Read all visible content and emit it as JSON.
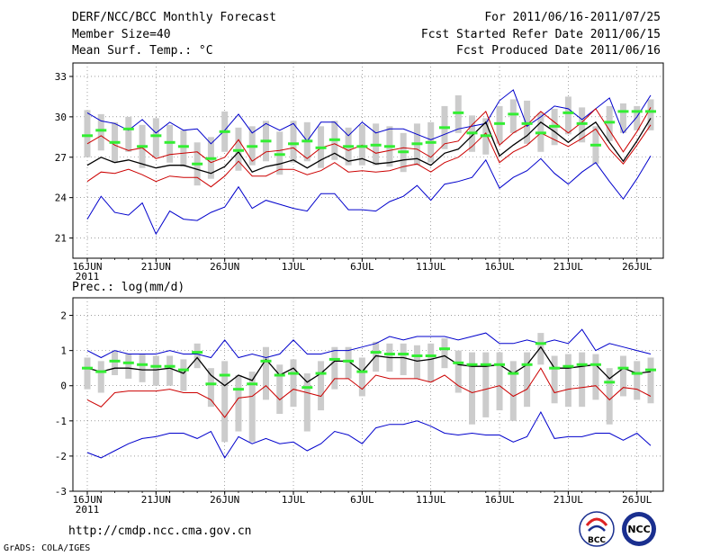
{
  "header": {
    "title": "DERF/NCC/BCC Monthly Forecast",
    "member_size": "Member Size=40",
    "variable": "Mean Surf. Temp.: °C",
    "forecast_period": "For 2011/06/16-2011/07/25",
    "start_date": "Fcst Started Refer Date 2011/06/15",
    "produced_date": "Fcst Produced Date 2011/06/16"
  },
  "footer": {
    "url": "http://cmdp.ncc.cma.gov.cn",
    "credit": "GrADS: COLA/IGES",
    "logo_bcc": "BCC",
    "logo_ncc": "NCC"
  },
  "colors": {
    "max": "#0000cc",
    "min": "#0000cc",
    "upper": "#cc0000",
    "lower": "#cc0000",
    "mean": "#000000",
    "median": "#33ee33",
    "box": "#cccccc"
  },
  "chart_data": [
    {
      "type": "line",
      "title": "Mean Surf. Temp.: °C",
      "x_tick_labels": [
        "16JUN",
        "21JUN",
        "26JUN",
        "1JUL",
        "6JUL",
        "11JUL",
        "16JUL",
        "21JUL",
        "26JUL"
      ],
      "year_label": "2011",
      "ylim": [
        19.5,
        34
      ],
      "y_ticks": [
        21,
        24,
        27,
        30,
        33
      ],
      "y_tick_labels": [
        "21",
        "24",
        "27",
        "30",
        "33"
      ],
      "grid": true,
      "series": [
        {
          "name": "max",
          "values": [
            30.3,
            29.7,
            29.5,
            29.0,
            29.8,
            28.8,
            29.6,
            29.0,
            29.1,
            28.0,
            29.0,
            30.2,
            28.8,
            29.5,
            29.0,
            29.5,
            28.2,
            29.6,
            29.6,
            28.6,
            29.6,
            28.8,
            29.1,
            29.1,
            28.7,
            28.3,
            28.7,
            29.1,
            29.3,
            29.5,
            31.2,
            32.0,
            29.3,
            30.0,
            30.8,
            30.6,
            29.8,
            30.6,
            31.4,
            28.8,
            30.0,
            31.6
          ]
        },
        {
          "name": "upper",
          "values": [
            28.0,
            28.6,
            27.9,
            27.5,
            27.7,
            26.9,
            27.2,
            27.3,
            27.4,
            26.6,
            27.0,
            28.3,
            26.7,
            27.4,
            27.5,
            27.7,
            26.9,
            27.7,
            28.0,
            27.5,
            27.9,
            27.3,
            27.5,
            27.7,
            27.6,
            27.0,
            28.0,
            28.2,
            29.4,
            30.4,
            27.9,
            28.8,
            29.4,
            30.4,
            29.6,
            28.8,
            29.6,
            30.6,
            29.0,
            27.4,
            28.9,
            30.7
          ]
        },
        {
          "name": "mean",
          "values": [
            26.4,
            27.0,
            26.6,
            26.8,
            26.5,
            26.2,
            26.4,
            26.4,
            26.1,
            25.8,
            26.3,
            27.4,
            25.9,
            26.3,
            26.5,
            26.8,
            26.2,
            26.8,
            27.3,
            26.7,
            26.9,
            26.5,
            26.6,
            26.8,
            26.9,
            26.4,
            27.3,
            27.6,
            28.6,
            29.6,
            27.1,
            27.9,
            28.6,
            29.6,
            28.9,
            28.1,
            28.9,
            29.6,
            28.1,
            26.7,
            28.2,
            29.9
          ]
        },
        {
          "name": "lower",
          "values": [
            25.2,
            25.9,
            25.8,
            26.1,
            25.7,
            25.2,
            25.6,
            25.5,
            25.5,
            24.8,
            25.6,
            26.7,
            25.6,
            25.6,
            26.1,
            26.1,
            25.7,
            26.0,
            26.6,
            25.9,
            26.0,
            25.9,
            26.0,
            26.3,
            26.5,
            25.9,
            26.6,
            27.0,
            27.8,
            28.8,
            26.6,
            27.4,
            27.9,
            28.8,
            28.3,
            27.8,
            28.4,
            29.1,
            27.6,
            26.5,
            27.9,
            29.4
          ]
        },
        {
          "name": "min",
          "values": [
            22.4,
            24.1,
            22.9,
            22.7,
            23.6,
            21.3,
            23.0,
            22.4,
            22.3,
            22.9,
            23.3,
            24.8,
            23.2,
            23.8,
            23.5,
            23.2,
            23.0,
            24.3,
            24.3,
            23.1,
            23.1,
            23.0,
            23.7,
            24.1,
            24.9,
            23.8,
            25.0,
            25.2,
            25.5,
            26.8,
            24.7,
            25.5,
            26.0,
            26.9,
            25.8,
            25.0,
            25.9,
            26.6,
            25.2,
            23.9,
            25.4,
            27.1
          ]
        },
        {
          "name": "median",
          "values": [
            28.6,
            29.0,
            28.1,
            29.1,
            27.8,
            28.6,
            28.1,
            27.8,
            26.5,
            26.9,
            28.9,
            27.5,
            27.8,
            28.2,
            27.2,
            28.0,
            28.2,
            27.7,
            28.3,
            27.8,
            27.8,
            27.9,
            27.8,
            27.4,
            28.0,
            28.1,
            29.2,
            30.3,
            28.8,
            28.6,
            29.5,
            30.2,
            29.5,
            28.8,
            29.3,
            30.3,
            29.5,
            27.9,
            29.6,
            30.4,
            30.4,
            30.4
          ]
        },
        {
          "name": "box_high",
          "values": [
            30.5,
            30.2,
            29.6,
            30.0,
            29.4,
            29.9,
            29.4,
            29.0,
            28.1,
            28.5,
            30.4,
            29.2,
            29.3,
            29.7,
            28.9,
            29.7,
            29.6,
            29.3,
            29.7,
            29.2,
            29.4,
            29.5,
            29.3,
            28.8,
            29.5,
            29.6,
            30.8,
            31.6,
            30.1,
            29.9,
            30.8,
            31.3,
            31.2,
            30.3,
            30.6,
            31.5,
            30.7,
            29.3,
            30.8,
            31.0,
            30.8,
            31.3
          ]
        },
        {
          "name": "box_low",
          "values": [
            27.0,
            27.5,
            26.6,
            27.4,
            26.2,
            27.0,
            26.6,
            26.3,
            24.9,
            25.4,
            27.4,
            26.0,
            26.4,
            26.7,
            25.7,
            26.6,
            26.7,
            26.2,
            26.8,
            26.4,
            26.4,
            26.4,
            26.3,
            25.9,
            26.4,
            26.6,
            27.6,
            28.8,
            27.4,
            27.2,
            28.0,
            28.8,
            28.0,
            27.4,
            27.9,
            28.7,
            28.1,
            26.5,
            28.2,
            28.8,
            29.0,
            29.0
          ]
        }
      ]
    },
    {
      "type": "line",
      "title": "Prec.: log(mm/d)",
      "x_tick_labels": [
        "16JUN",
        "21JUN",
        "26JUN",
        "1JUL",
        "6JUL",
        "11JUL",
        "16JUL",
        "21JUL",
        "26JUL"
      ],
      "year_label": "2011",
      "ylim": [
        -3,
        2.5
      ],
      "y_ticks": [
        -3,
        -2,
        -1,
        0,
        1,
        2
      ],
      "y_tick_labels": [
        "-3",
        "-2",
        "-1",
        "0",
        "1",
        "2"
      ],
      "grid": true,
      "series": [
        {
          "name": "max",
          "values": [
            1.0,
            0.8,
            1.0,
            0.9,
            0.9,
            0.9,
            1.0,
            0.9,
            0.9,
            0.8,
            1.3,
            0.8,
            0.9,
            0.8,
            0.9,
            1.3,
            0.9,
            0.9,
            1.0,
            1.0,
            1.1,
            1.2,
            1.4,
            1.3,
            1.4,
            1.4,
            1.4,
            1.3,
            1.4,
            1.5,
            1.2,
            1.2,
            1.3,
            1.2,
            1.3,
            1.2,
            1.6,
            1.0,
            1.2,
            1.1,
            1.0,
            0.9
          ]
        },
        {
          "name": "mean",
          "values": [
            0.5,
            0.4,
            0.5,
            0.5,
            0.45,
            0.45,
            0.5,
            0.35,
            0.8,
            0.3,
            0.0,
            0.3,
            0.15,
            0.75,
            0.3,
            0.5,
            0.1,
            0.35,
            0.7,
            0.7,
            0.4,
            0.85,
            0.8,
            0.8,
            0.7,
            0.75,
            0.85,
            0.6,
            0.55,
            0.55,
            0.6,
            0.35,
            0.6,
            1.1,
            0.5,
            0.5,
            0.55,
            0.6,
            0.2,
            0.5,
            0.35,
            0.4
          ]
        },
        {
          "name": "lower",
          "values": [
            -0.4,
            -0.6,
            -0.2,
            -0.15,
            -0.15,
            -0.15,
            -0.1,
            -0.2,
            -0.2,
            -0.4,
            -0.9,
            -0.35,
            -0.3,
            0.0,
            -0.4,
            -0.1,
            -0.2,
            -0.3,
            0.2,
            0.2,
            -0.1,
            0.3,
            0.2,
            0.2,
            0.2,
            0.1,
            0.3,
            0.0,
            -0.2,
            -0.1,
            0.0,
            -0.3,
            -0.1,
            0.5,
            -0.2,
            -0.1,
            -0.05,
            0.0,
            -0.4,
            -0.05,
            -0.1,
            -0.3
          ]
        },
        {
          "name": "min",
          "values": [
            -1.9,
            -2.05,
            -1.85,
            -1.65,
            -1.5,
            -1.45,
            -1.35,
            -1.35,
            -1.5,
            -1.3,
            -2.05,
            -1.45,
            -1.65,
            -1.5,
            -1.65,
            -1.6,
            -1.85,
            -1.65,
            -1.3,
            -1.4,
            -1.65,
            -1.2,
            -1.1,
            -1.1,
            -1.0,
            -1.15,
            -1.35,
            -1.4,
            -1.35,
            -1.4,
            -1.4,
            -1.6,
            -1.45,
            -0.75,
            -1.5,
            -1.45,
            -1.45,
            -1.35,
            -1.35,
            -1.55,
            -1.35,
            -1.7
          ]
        },
        {
          "name": "median",
          "values": [
            0.5,
            0.4,
            0.7,
            0.65,
            0.6,
            0.55,
            0.55,
            0.45,
            0.95,
            0.05,
            0.3,
            -0.1,
            0.05,
            0.7,
            0.3,
            0.35,
            -0.05,
            0.35,
            0.75,
            0.7,
            0.4,
            0.95,
            0.9,
            0.9,
            0.85,
            0.85,
            1.05,
            0.65,
            0.6,
            0.6,
            0.6,
            0.35,
            0.6,
            1.2,
            0.5,
            0.55,
            0.6,
            0.6,
            0.1,
            0.5,
            0.35,
            0.45
          ]
        },
        {
          "name": "box_high",
          "values": [
            0.8,
            0.7,
            1.0,
            0.9,
            0.9,
            0.85,
            0.85,
            0.75,
            1.2,
            0.5,
            0.7,
            0.3,
            0.4,
            1.1,
            0.6,
            0.75,
            0.35,
            0.7,
            1.1,
            1.1,
            0.8,
            1.25,
            1.2,
            1.2,
            1.15,
            1.2,
            1.35,
            1.0,
            0.95,
            0.95,
            0.95,
            0.7,
            0.95,
            1.5,
            0.85,
            0.9,
            0.95,
            0.9,
            0.5,
            0.85,
            0.7,
            0.8
          ]
        },
        {
          "name": "box_low",
          "values": [
            -0.1,
            -0.2,
            0.3,
            0.2,
            0.1,
            0.0,
            0.0,
            -0.15,
            0.5,
            -0.6,
            -1.6,
            -1.3,
            -1.6,
            -0.4,
            -0.8,
            -0.6,
            -1.3,
            -0.7,
            -0.1,
            0.2,
            -0.3,
            0.4,
            0.4,
            0.3,
            0.2,
            0.1,
            0.5,
            -0.2,
            -1.1,
            -0.9,
            -0.7,
            -1.0,
            -0.6,
            0.6,
            -0.5,
            -0.6,
            -0.6,
            -0.4,
            -1.1,
            -0.3,
            -0.4,
            -0.5
          ]
        }
      ]
    }
  ]
}
